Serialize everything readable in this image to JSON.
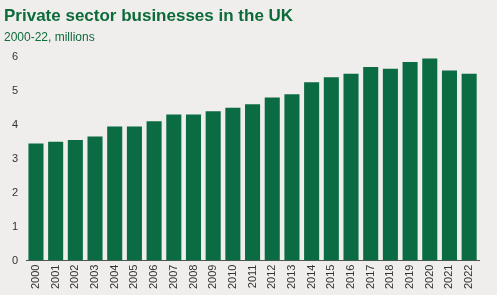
{
  "chart_data": {
    "type": "bar",
    "title": "Private sector businesses in the UK",
    "subtitle": "2000-22, millions",
    "categories": [
      "2000",
      "2001",
      "2002",
      "2003",
      "2004",
      "2005",
      "2006",
      "2007",
      "2008",
      "2009",
      "2010",
      "2011",
      "2012",
      "2013",
      "2014",
      "2015",
      "2016",
      "2017",
      "2018",
      "2019",
      "2020",
      "2021",
      "2022"
    ],
    "values": [
      3.45,
      3.5,
      3.55,
      3.65,
      3.95,
      3.95,
      4.1,
      4.3,
      4.3,
      4.4,
      4.5,
      4.6,
      4.8,
      4.9,
      5.25,
      5.4,
      5.5,
      5.7,
      5.65,
      5.85,
      5.95,
      5.6,
      5.5
    ],
    "color": "#0b6b43",
    "ylim": [
      0,
      6
    ],
    "yticks": [
      0,
      1,
      2,
      3,
      4,
      5,
      6
    ],
    "grid": false
  }
}
